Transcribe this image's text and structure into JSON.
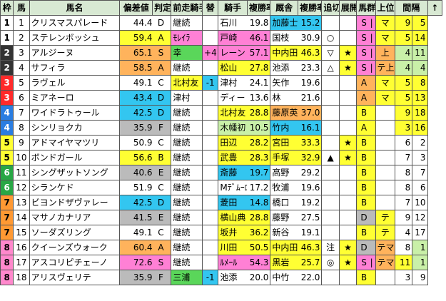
{
  "headers": {
    "waku": "枠",
    "uma": "馬",
    "name": "馬名",
    "hensa": "偏差値",
    "hantei": "判定",
    "prev_jockey": "前走騎手",
    "kae": "替",
    "jockey": "騎手",
    "place_rate": "複勝率",
    "trainer": "厩舎",
    "trainer_rate": "複勝率",
    "oikiri": "追切",
    "tenkai": "展開",
    "bagun": "馬群",
    "joui": "上位",
    "kaikan": "間隔",
    "sort": "↑"
  },
  "rows": [
    {
      "waku": "1",
      "uma": "1",
      "name": "クリスマスパレード",
      "hensa": "44.4",
      "hantei": "D",
      "prev": "継続",
      "kae": "",
      "jockey": "石川",
      "jrate": "19.8",
      "trainer": "加藤士",
      "trate": "15.2",
      "oikiri": "",
      "tenkai": "",
      "bagun": "S",
      "bagun2": "|",
      "joui": "マ",
      "kan1": "9",
      "kan2": "5"
    },
    {
      "waku": "1",
      "uma": "2",
      "name": "ステレンボッシュ",
      "hensa": "59.4",
      "hantei": "A",
      "prev": "ﾓﾚｲﾗ",
      "kae": "",
      "jockey": "戸崎",
      "jrate": "46.1",
      "trainer": "国枝",
      "trate": "30.9",
      "oikiri": "○",
      "tenkai": "",
      "bagun": "S",
      "bagun2": "|",
      "joui": "マ",
      "kan1": "5",
      "kan2": "14"
    },
    {
      "waku": "2",
      "uma": "3",
      "name": "アルジーヌ",
      "hensa": "65.1",
      "hantei": "S",
      "prev": "幸",
      "kae": "+4",
      "jockey": "レーン",
      "jrate": "57.1",
      "trainer": "中内田",
      "trate": "46.3",
      "oikiri": "▽",
      "tenkai": "★",
      "bagun": "S",
      "bagun2": "|",
      "joui": "上",
      "kan1": "4",
      "kan2": "11"
    },
    {
      "waku": "2",
      "uma": "4",
      "name": "サフィラ",
      "hensa": "58.5",
      "hantei": "A",
      "prev": "継続",
      "kae": "",
      "jockey": "松山",
      "jrate": "27.8",
      "trainer": "池添",
      "trate": "23.3",
      "oikiri": "△",
      "tenkai": "★",
      "bagun": "S",
      "bagun2": "|",
      "joui": "テ上",
      "kan1": "4",
      "kan2": "4"
    },
    {
      "waku": "3",
      "uma": "5",
      "name": "ラヴェル",
      "hensa": "49.1",
      "hantei": "C",
      "prev": "北村友",
      "kae": "-1",
      "jockey": "津村",
      "jrate": "24.1",
      "trainer": "矢作",
      "trate": "19.6",
      "oikiri": "",
      "tenkai": "",
      "bagun": "A",
      "bagun2": "",
      "joui": "マ",
      "kan1": "5",
      "kan2": "8"
    },
    {
      "waku": "3",
      "uma": "6",
      "name": "ミアネーロ",
      "hensa": "43.4",
      "hantei": "D",
      "prev": "津村",
      "kae": "",
      "jockey": "ディー",
      "jrate": "13.6",
      "trainer": "林",
      "trate": "21.6",
      "oikiri": "",
      "tenkai": "",
      "bagun": "A",
      "bagun2": "",
      "joui": "マ",
      "kan1": "5",
      "kan2": "13"
    },
    {
      "waku": "4",
      "uma": "7",
      "name": "ワイドラトゥール",
      "hensa": "42.5",
      "hantei": "D",
      "prev": "継続",
      "kae": "",
      "jockey": "北村友",
      "jrate": "28.8",
      "trainer": "藤原英",
      "trate": "37.0",
      "oikiri": "",
      "tenkai": "",
      "bagun": "B",
      "bagun2": "",
      "joui": "",
      "kan1": "9",
      "kan2": "18"
    },
    {
      "waku": "4",
      "uma": "8",
      "name": "シンリョクカ",
      "hensa": "35.9",
      "hantei": "F",
      "prev": "継続",
      "kae": "",
      "jockey": "木幡初",
      "jrate": "10.5",
      "trainer": "竹内",
      "trate": "16.1",
      "oikiri": "",
      "tenkai": "",
      "bagun": "A",
      "bagun2": "",
      "joui": "",
      "kan1": "3",
      "kan2": "16"
    },
    {
      "waku": "5",
      "uma": "9",
      "name": "アドマイヤマツリ",
      "hensa": "50.9",
      "hantei": "C",
      "prev": "継続",
      "kae": "",
      "jockey": "田辺",
      "jrate": "28.2",
      "trainer": "宮田",
      "trate": "33.3",
      "oikiri": "",
      "tenkai": "★",
      "bagun": "B",
      "bagun2": "",
      "joui": "",
      "kan1": "6",
      "kan2": "2"
    },
    {
      "waku": "5",
      "uma": "10",
      "name": "ボンドガール",
      "hensa": "56.6",
      "hantei": "B",
      "prev": "継続",
      "kae": "",
      "jockey": "武豊",
      "jrate": "28.3",
      "trainer": "手塚",
      "trate": "32.9",
      "oikiri": "▲",
      "tenkai": "★",
      "bagun": "B",
      "bagun2": "",
      "joui": "",
      "kan1": "7",
      "kan2": "3"
    },
    {
      "waku": "6",
      "uma": "11",
      "name": "シングザットソング",
      "hensa": "40.6",
      "hantei": "E",
      "prev": "継続",
      "kae": "",
      "jockey": "斎藤",
      "jrate": "19.7",
      "trainer": "高野",
      "trate": "29.2",
      "oikiri": "",
      "tenkai": "",
      "bagun": "B",
      "bagun2": "",
      "joui": "",
      "kan1": "8",
      "kan2": "7"
    },
    {
      "waku": "6",
      "uma": "12",
      "name": "シランケド",
      "hensa": "51.9",
      "hantei": "C",
      "prev": "継続",
      "kae": "",
      "jockey": "Mﾃﾞﾑｰﾛ",
      "jrate": "17.2",
      "trainer": "牧浦",
      "trate": "19.6",
      "oikiri": "",
      "tenkai": "",
      "bagun": "B",
      "bagun2": "",
      "joui": "",
      "kan1": "8",
      "kan2": "6"
    },
    {
      "waku": "7",
      "uma": "13",
      "name": "ビヨンドザヴァレー",
      "hensa": "42.5",
      "hantei": "D",
      "prev": "継続",
      "kae": "",
      "jockey": "菱田",
      "jrate": "14.8",
      "trainer": "橋口",
      "trate": "19.2",
      "oikiri": "",
      "tenkai": "",
      "bagun": "B",
      "bagun2": "",
      "joui": "",
      "kan1": "7",
      "kan2": "10"
    },
    {
      "waku": "7",
      "uma": "14",
      "name": "マサノカナリア",
      "hensa": "41.5",
      "hantei": "E",
      "prev": "継続",
      "kae": "",
      "jockey": "横山典",
      "jrate": "28.8",
      "trainer": "藤野",
      "trate": "27.5",
      "oikiri": "",
      "tenkai": "",
      "bagun": "D",
      "bagun2": "",
      "joui": "テ",
      "kan1": "9",
      "kan2": "12"
    },
    {
      "waku": "7",
      "uma": "15",
      "name": "ソーダズリング",
      "hensa": "49.1",
      "hantei": "C",
      "prev": "継続",
      "kae": "",
      "jockey": "坂井",
      "jrate": "36.2",
      "trainer": "新谷",
      "trate": "19.1",
      "oikiri": "",
      "tenkai": "",
      "bagun": "B",
      "bagun2": "",
      "joui": "テ",
      "kan1": "4",
      "kan2": "17"
    },
    {
      "waku": "8",
      "uma": "16",
      "name": "クイーンズウォーク",
      "hensa": "60.4",
      "hantei": "A",
      "prev": "継続",
      "kae": "",
      "jockey": "川田",
      "jrate": "50.5",
      "trainer": "中内田",
      "trate": "46.3",
      "oikiri": "注",
      "tenkai": "★",
      "bagun": "D",
      "bagun2": "",
      "joui": "テマ",
      "kan1": "8",
      "kan2": "1"
    },
    {
      "waku": "8",
      "uma": "17",
      "name": "アスコリピチェーノ",
      "hensa": "72.6",
      "hantei": "S",
      "prev": "継続",
      "kae": "",
      "jockey": "ﾙﾒｰﾙ",
      "jrate": "54.3",
      "trainer": "黒岩",
      "trate": "25.7",
      "oikiri": "◎",
      "tenkai": "★",
      "bagun": "S",
      "bagun2": "|",
      "joui": "テマ",
      "kan1": "11",
      "kan2": "1"
    },
    {
      "waku": "8",
      "uma": "18",
      "name": "アリスヴェリテ",
      "hensa": "35.9",
      "hantei": "F",
      "prev": "三浦",
      "kae": "-1",
      "jockey": "池添",
      "jrate": "20.0",
      "trainer": "中竹",
      "trate": "22.0",
      "oikiri": "",
      "tenkai": "",
      "bagun": "B",
      "bagun2": "",
      "joui": "",
      "kan1": "3",
      "kan2": "9"
    }
  ],
  "styles": {
    "hensa_bg": [
      "",
      "bg-yellow",
      "bg-orange",
      "bg-orange",
      "",
      "bg-blue",
      "bg-blue",
      "bg-grayd",
      "",
      "bg-yellow",
      "bg-grayd",
      "",
      "bg-blue",
      "bg-grayd",
      "",
      "bg-orange",
      "bg-pink",
      "bg-grayd"
    ],
    "prev_bg": [
      "",
      "bg-pink",
      "bg-green",
      "",
      "bg-yellow",
      "",
      "",
      "",
      "",
      "",
      "",
      "",
      "",
      "",
      "",
      "",
      "",
      "bg-green"
    ],
    "kae_bg": [
      "",
      "",
      "bg-pink",
      "",
      "bg-blue",
      "",
      "",
      "",
      "",
      "",
      "",
      "",
      "",
      "",
      "",
      "",
      "",
      "bg-blue"
    ],
    "jockey_bg": [
      "",
      "bg-pink",
      "bg-pink",
      "bg-yellow",
      "",
      "",
      "bg-yellow",
      "bg-lightgreen",
      "bg-yellow",
      "bg-yellow",
      "bg-blue",
      "",
      "bg-blue",
      "bg-yellow",
      "bg-yellow",
      "bg-yellow",
      "bg-pink",
      ""
    ],
    "trainer_bg": [
      "bg-blue",
      "",
      "bg-yellow",
      "",
      "",
      "",
      "bg-orange",
      "bg-blue",
      "bg-yellow",
      "bg-yellow",
      "",
      "",
      "",
      "",
      "",
      "bg-yellow",
      "bg-yellow",
      ""
    ],
    "bagun_bg": [
      "bg-pink",
      "bg-pink",
      "bg-pink",
      "bg-pink",
      "bg-orange",
      "bg-orange",
      "bg-yellow",
      "bg-yellow",
      "bg-yellow",
      "bg-yellow",
      "bg-yellow",
      "bg-yellow",
      "bg-yellow",
      "bg-grayd",
      "bg-yellow",
      "bg-grayd",
      "bg-pink",
      "bg-yellow"
    ],
    "joui_bg": [
      "bg-yellow",
      "bg-yellow",
      "bg-orange",
      "bg-orange",
      "bg-yellow",
      "bg-yellow",
      "",
      "",
      "",
      "",
      "",
      "",
      "",
      "bg-yellow",
      "bg-yellow",
      "bg-orange",
      "bg-orange",
      ""
    ],
    "kan1_bg": [
      "bg-yellow",
      "bg-yellow",
      "bg-lightgreen",
      "bg-lightgreen",
      "bg-yellow",
      "bg-yellow",
      "bg-yellow",
      "bg-yellow",
      "",
      "",
      "",
      "",
      "",
      "",
      "",
      "",
      "bg-yellow",
      ""
    ],
    "kan2_bg": [
      "bg-yellow",
      "bg-yellow",
      "bg-lightgreen",
      "bg-lightgreen",
      "bg-yellow",
      "bg-yellow",
      "bg-yellow",
      "bg-yellow",
      "",
      "",
      "",
      "",
      "",
      "",
      "",
      "bg-lightgreen",
      "bg-lightgreen",
      ""
    ]
  }
}
